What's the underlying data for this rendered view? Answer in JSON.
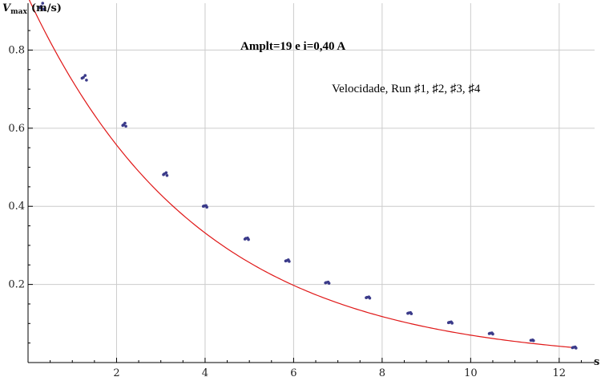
{
  "chart_data": {
    "type": "scatter",
    "ylabel_main": "V",
    "ylabel_sub": "max",
    "ylabel_unit": "(m/s)",
    "xlabel": "s",
    "annotation_title": "Amplt=19 e i=0,40 A",
    "annotation_legend": "Velocidade, Run ♯1, ♯2, ♯3, ♯4",
    "xlim": [
      0,
      12.8
    ],
    "ylim": [
      0,
      0.92
    ],
    "x_ticks": [
      2,
      4,
      6,
      8,
      10,
      12
    ],
    "y_ticks": [
      0.2,
      0.4,
      0.6,
      0.8
    ],
    "x_tick_labels": [
      "2",
      "4",
      "6",
      "8",
      "10",
      "12"
    ],
    "y_tick_labels": [
      "0.2",
      "0.4",
      "0.6",
      "0.8"
    ],
    "grid": true,
    "colors": {
      "points": "#3b3b8a",
      "fit": "#e01818",
      "grid": "#cccccc",
      "axis": "#000000"
    },
    "fit_curve": {
      "model": "exponential",
      "a": 0.935,
      "b": 0.259,
      "x_range": [
        0,
        12.4
      ]
    },
    "series": [
      {
        "values": [
          [
            0.3,
            0.912
          ],
          [
            0.36,
            0.905
          ],
          [
            0.33,
            0.92
          ],
          [
            0.28,
            0.908
          ],
          [
            1.25,
            0.73
          ],
          [
            1.32,
            0.723
          ],
          [
            1.29,
            0.735
          ],
          [
            1.22,
            0.728
          ],
          [
            2.16,
            0.609
          ],
          [
            2.21,
            0.605
          ],
          [
            2.19,
            0.613
          ],
          [
            2.14,
            0.607
          ],
          [
            3.08,
            0.483
          ],
          [
            3.14,
            0.479
          ],
          [
            3.12,
            0.486
          ],
          [
            3.06,
            0.481
          ],
          [
            3.98,
            0.401
          ],
          [
            4.04,
            0.398
          ],
          [
            4.02,
            0.402
          ],
          [
            3.96,
            0.4
          ],
          [
            4.92,
            0.318
          ],
          [
            4.98,
            0.315
          ],
          [
            4.96,
            0.319
          ],
          [
            4.9,
            0.316
          ],
          [
            5.84,
            0.261
          ],
          [
            5.9,
            0.259
          ],
          [
            5.88,
            0.263
          ],
          [
            5.82,
            0.26
          ],
          [
            6.74,
            0.205
          ],
          [
            6.8,
            0.203
          ],
          [
            6.78,
            0.206
          ],
          [
            6.72,
            0.204
          ],
          [
            7.66,
            0.167
          ],
          [
            7.72,
            0.165
          ],
          [
            7.7,
            0.168
          ],
          [
            7.64,
            0.166
          ],
          [
            8.6,
            0.127
          ],
          [
            8.66,
            0.125
          ],
          [
            8.64,
            0.128
          ],
          [
            8.58,
            0.126
          ],
          [
            9.52,
            0.103
          ],
          [
            9.58,
            0.101
          ],
          [
            9.56,
            0.104
          ],
          [
            9.5,
            0.102
          ],
          [
            10.44,
            0.075
          ],
          [
            10.5,
            0.073
          ],
          [
            10.48,
            0.076
          ],
          [
            10.42,
            0.074
          ],
          [
            11.38,
            0.057
          ],
          [
            11.42,
            0.056
          ],
          [
            11.4,
            0.058
          ],
          [
            11.36,
            0.057
          ],
          [
            12.32,
            0.039
          ],
          [
            12.38,
            0.037
          ],
          [
            12.36,
            0.04
          ],
          [
            12.3,
            0.038
          ]
        ]
      }
    ]
  }
}
